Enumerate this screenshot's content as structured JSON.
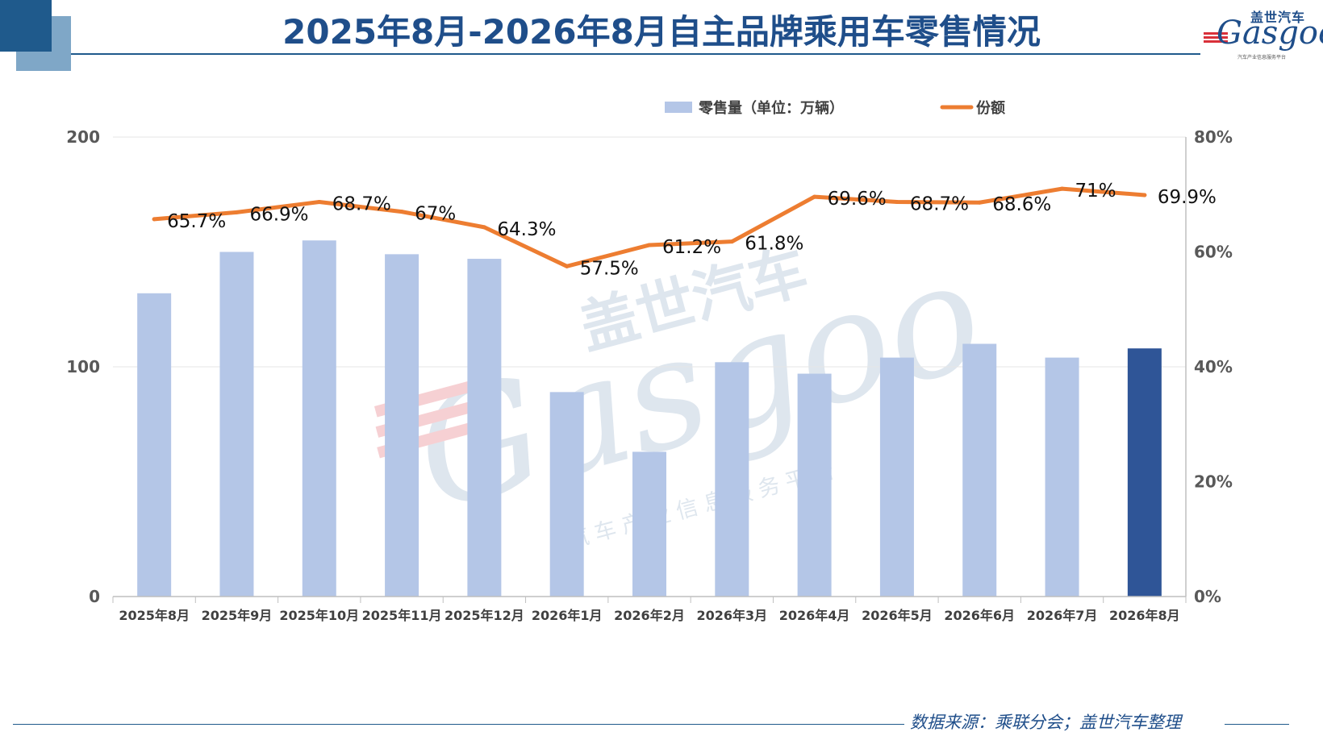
{
  "header": {
    "title": "2025年8月-2026年8月自主品牌乘用车零售情况",
    "logo_cn": "盖世汽车",
    "logo_en": "Gasgoo",
    "logo_sub": "汽车产业信息服务平台"
  },
  "watermark": {
    "cn": "盖世汽车",
    "en": "Gasgoo",
    "sub": "汽车产业信息服务平台"
  },
  "footer": {
    "source": "数据来源：乘联分会；盖世汽车整理"
  },
  "colors": {
    "bar": "#b4c6e7",
    "bar_highlight": "#2f5597",
    "line": "#ed7d31",
    "title": "#1f4e8a",
    "accent_dark": "#1f5a8c",
    "accent_light": "#7fa7c7"
  },
  "chart_data": {
    "type": "bar",
    "categories": [
      "2025年8月",
      "2025年9月",
      "2025年10月",
      "2025年11月",
      "2025年12月",
      "2026年1月",
      "2026年2月",
      "2026年3月",
      "2026年4月",
      "2026年5月",
      "2026年6月",
      "2026年7月",
      "2026年8月"
    ],
    "series": [
      {
        "name": "零售量（单位：万辆）",
        "type": "bar",
        "axis": "left",
        "values": [
          132,
          150,
          155,
          149,
          147,
          89,
          63,
          102,
          97,
          104,
          110,
          104,
          108
        ],
        "highlight_index": 12
      },
      {
        "name": "份额",
        "type": "line",
        "axis": "right",
        "values": [
          65.7,
          66.9,
          68.7,
          67,
          64.3,
          57.5,
          61.2,
          61.8,
          69.6,
          68.7,
          68.6,
          71,
          69.9
        ],
        "labels": [
          "65.7%",
          "66.9%",
          "68.7%",
          "67%",
          "64.3%",
          "57.5%",
          "61.2%",
          "61.8%",
          "69.6%",
          "68.7%",
          "68.6%",
          "71%",
          "69.9%"
        ]
      }
    ],
    "y_left": {
      "ylim": [
        0,
        200
      ],
      "ticks": [
        "0",
        "100",
        "200"
      ]
    },
    "y_right": {
      "ylim": [
        0,
        80
      ],
      "ticks": [
        "0%",
        "20%",
        "40%",
        "60%",
        "80%"
      ]
    },
    "grid": true,
    "legend_position": "top"
  }
}
